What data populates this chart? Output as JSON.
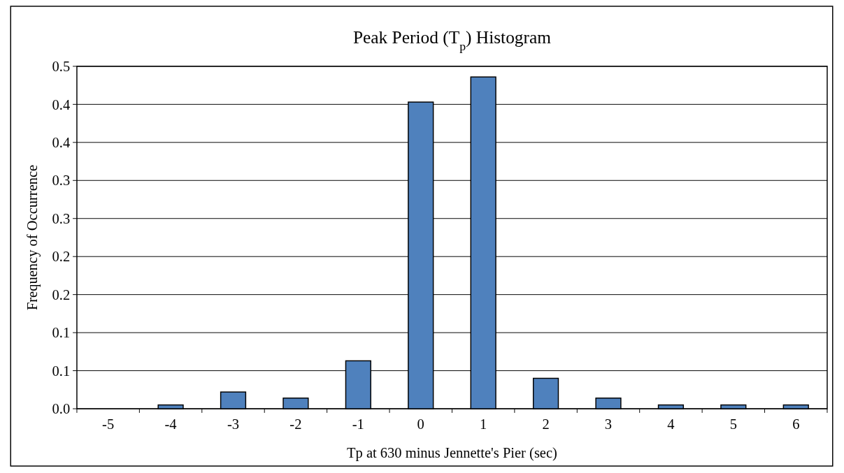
{
  "chart_data": {
    "type": "bar",
    "title": "Peak Period (T$_{p}$) Histogram",
    "xlabel": "Tp at 630 minus Jennette's Pier (sec)",
    "ylabel": "Frequency of Occurrence",
    "categories": [
      "-5",
      "-4",
      "-3",
      "-2",
      "-1",
      "0",
      "1",
      "2",
      "3",
      "4",
      "5",
      "6"
    ],
    "values": [
      0,
      0.005,
      0.022,
      0.014,
      0.063,
      0.403,
      0.436,
      0.04,
      0.014,
      0.005,
      0.005,
      0.005
    ],
    "color": "#4f81bd",
    "ylim": [
      0,
      0.45
    ],
    "yticks": [
      {
        "value": 0,
        "label": "0.0"
      },
      {
        "value": 0.05,
        "label": "0.1"
      },
      {
        "value": 0.1,
        "label": "0.1"
      },
      {
        "value": 0.15,
        "label": "0.2"
      },
      {
        "value": 0.2,
        "label": "0.2"
      },
      {
        "value": 0.25,
        "label": "0.3"
      },
      {
        "value": 0.3,
        "label": "0.3"
      },
      {
        "value": 0.35,
        "label": "0.4"
      },
      {
        "value": 0.4,
        "label": "0.4"
      },
      {
        "value": 0.45,
        "label": "0.5"
      }
    ],
    "grid": "y"
  }
}
